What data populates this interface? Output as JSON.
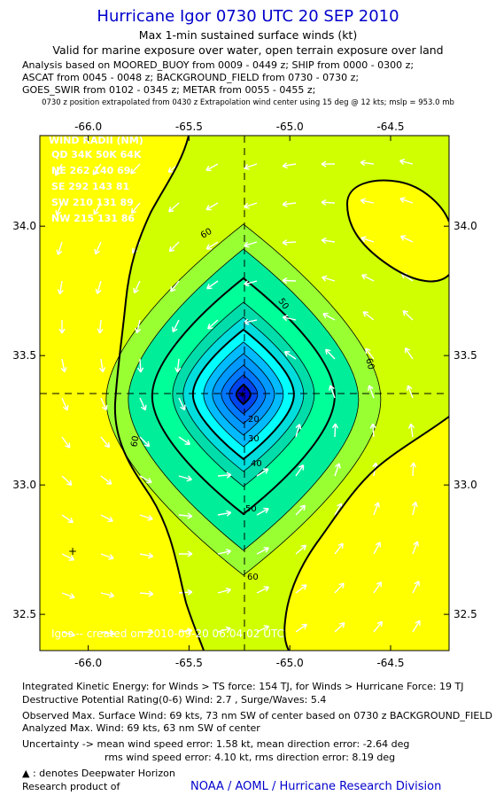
{
  "header": {
    "title": "Hurricane Igor 0730 UTC 20 SEP 2010",
    "subtitle1": "Max 1-min sustained surface winds (kt)",
    "subtitle2": "Valid for marine exposure over water, open terrain exposure over land",
    "analysis_lines": [
      "Analysis based on MOORED_BUOY from 0009 - 0449 z; SHIP from 0000 - 0300 z;",
      "ASCAT from 0045 - 0048 z; BACKGROUND_FIELD from 0730 - 0730 z;",
      "GOES_SWIR from 0102 - 0345 z; METAR from 0055 - 0455 z;"
    ],
    "position_note": "0730 z position extrapolated from 0430 z Extrapolation wind center using 15 deg @ 12 kts; mslp = 953.0 mb"
  },
  "chart_data": {
    "type": "contour",
    "x_ticks": [
      "-66.0",
      "-65.5",
      "-65.0",
      "-64.5"
    ],
    "y_ticks": [
      "34.0",
      "33.5",
      "33.0",
      "32.5"
    ],
    "xlim": [
      -66.24,
      -64.21
    ],
    "ylim": [
      32.36,
      34.35
    ],
    "center": {
      "lon": -65.23,
      "lat": 33.35
    },
    "contour_labels": [
      "20",
      "30",
      "40",
      "50",
      "50",
      "60",
      "60",
      "60",
      "60"
    ],
    "color_levels_kt": [
      5,
      10,
      15,
      20,
      25,
      30,
      35,
      40,
      45,
      50,
      55,
      60
    ],
    "colors": {
      "lt60": "#cfff00",
      "lt55": "#99ff33",
      "lt50": "#00ee99",
      "lt45": "#00ff99",
      "lt40": "#00ddaa",
      "lt35": "#00dddd",
      "lt30": "#00ffff",
      "lt25": "#00bbff",
      "lt20": "#0099ff",
      "lt15": "#0077ff",
      "lt10": "#0044ee",
      "lt5": "#0000cc",
      "ge64": "#ffff00"
    },
    "wind_radii": {
      "title": "WIND RADII (NM)",
      "header": "QD 34K 50K 64K",
      "rows": [
        "NE 262 140  69",
        "SE 292 143  81",
        "SW 210 131  89",
        "NW 215 131  86"
      ]
    },
    "watermark": "Igor -- created on 2010-09-20 06:04:02 UTC"
  },
  "footer": {
    "ike": "Integrated Kinetic Energy:  for Winds > TS force: 154 TJ,  for Winds > Hurricane Force: 19 TJ",
    "dpr": "Destructive Potential Rating(0-6)   Wind: 2.7 , Surge/Waves: 5.4",
    "obs": "Observed Max. Surface Wind: 69 kts, 73 nm SW of center based on 0730 z BACKGROUND_FIELD",
    "analyzed": "Analyzed Max. Wind: 69 kts, 63 nm SW of center",
    "unc1": "Uncertainty -> mean wind speed error: 1.58 kt,   mean direction error:  -2.64 deg",
    "unc2": "rms wind speed error: 4.10 kt,   rms direction error: 8.19 deg",
    "deepwater": ": denotes Deepwater Horizon",
    "research": "Research product of",
    "noaa": "NOAA / AOML / Hurricane Research Division"
  }
}
